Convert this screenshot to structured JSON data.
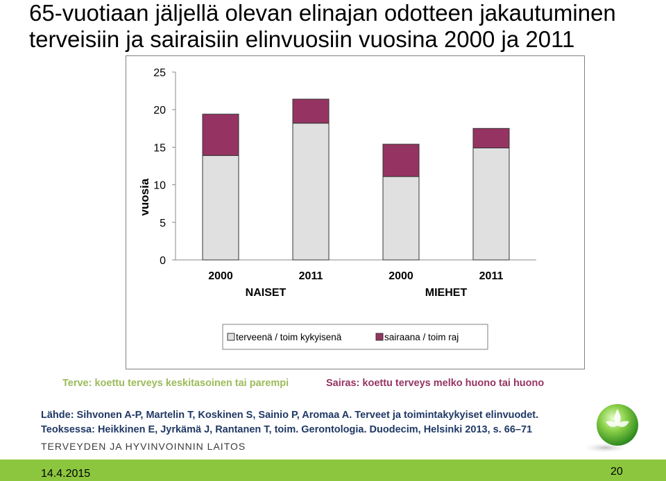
{
  "slide": {
    "title_line1": "65-vuotiaan jäljellä olevan elinajan odotteen jakautuminen",
    "title_line2": "terveisiin  ja sairaisiin elinvuosiin vuosina 2000 ja 2011",
    "note_healthy": "Terve: koettu terveys keskitasoinen tai parempi",
    "note_sick": "Sairas: koettu terveys melko huono tai huono",
    "source_line1": "Lähde: Sihvonen A-P, Martelin T, Koskinen S, Sainio P, Aromaa A. Terveet ja toimintakykyiset elinvuodet.",
    "source_line2": "Teoksessa: Heikkinen E, Jyrkämä J, Rantanen T, toim. Gerontologia. Duodecim, Helsinki 2013, s. 66–71",
    "org_name": "TERVEYDEN JA HYVINVOINNIN LAITOS",
    "date": "14.4.2015",
    "page_number": "20",
    "logo_icon": "thl-green-sphere-logo-icon"
  },
  "chart_data": {
    "type": "bar",
    "stacked": true,
    "title": "",
    "xlabel": "",
    "ylabel": "vuosia",
    "ylim": [
      0,
      25
    ],
    "yticks": [
      0,
      5,
      10,
      15,
      20,
      25
    ],
    "grid": false,
    "categories": [
      "2000",
      "2011",
      "2000",
      "2011"
    ],
    "groups": [
      {
        "label": "NAISET",
        "categories": [
          0,
          1
        ]
      },
      {
        "label": "MIEHET",
        "categories": [
          2,
          3
        ]
      }
    ],
    "series": [
      {
        "name": "terveenä / toim kykyisenä",
        "color": "#e0e0e0",
        "values": [
          13.9,
          18.2,
          11.1,
          14.9
        ]
      },
      {
        "name": "sairaana / toim raj",
        "color": "#953462",
        "values": [
          5.5,
          3.2,
          4.3,
          2.6
        ]
      }
    ],
    "legend_position": "bottom",
    "colors": {
      "healthy_note": "#9bbb59",
      "sick_note": "#953462",
      "footer_bar": "#8cc63f",
      "source_text": "#1f3864"
    }
  }
}
